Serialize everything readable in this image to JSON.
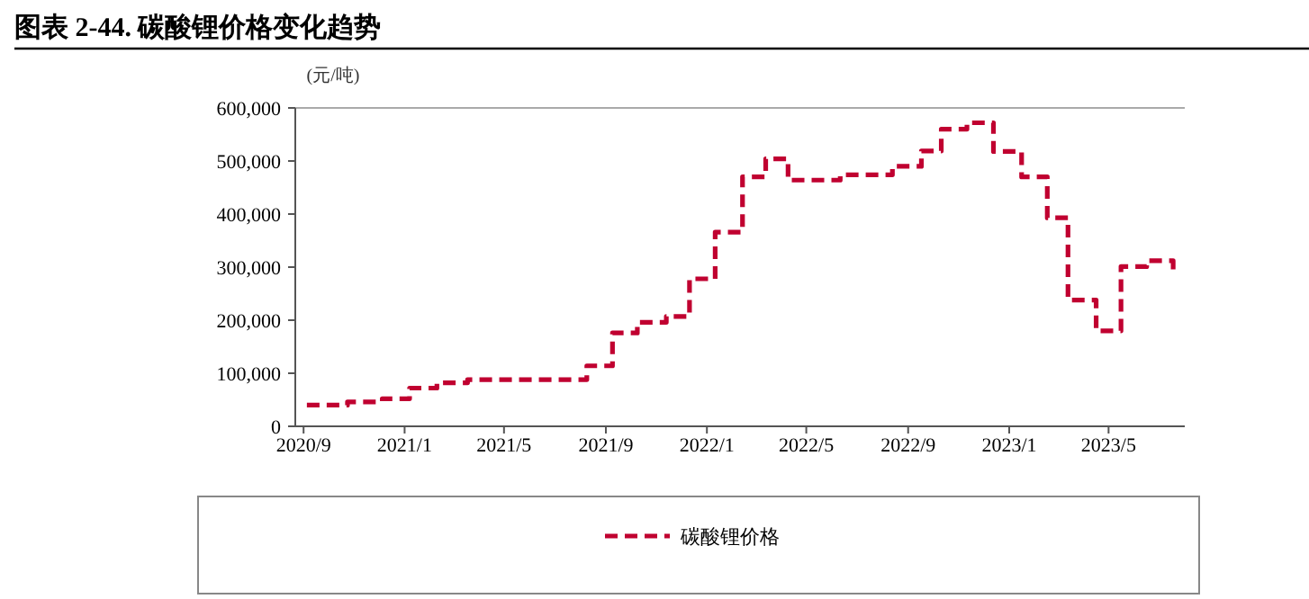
{
  "chart_data": {
    "type": "step",
    "title": "图表 2-44. 碳酸锂价格变化趋势",
    "ylabel": "(元/吨)",
    "x": [
      "2020-09-05",
      "2020-10-24",
      "2020-12-05",
      "2021-01-07",
      "2021-02-09",
      "2021-03-18",
      "2021-08-09",
      "2021-09-09",
      "2021-10-09",
      "2021-11-13",
      "2021-12-11",
      "2022-01-11",
      "2022-02-13",
      "2022-03-13",
      "2022-04-09",
      "2022-06-11",
      "2022-08-13",
      "2022-09-17",
      "2022-10-11",
      "2022-11-11",
      "2022-12-13",
      "2023-01-16",
      "2023-02-16",
      "2023-03-13",
      "2023-04-16",
      "2023-05-16",
      "2023-06-16",
      "2023-07-18"
    ],
    "series": [
      {
        "name": "碳酸锂价格",
        "color": "#c00030",
        "values": [
          40000,
          46000,
          52000,
          72000,
          82000,
          88000,
          114000,
          176000,
          196000,
          207000,
          278000,
          366000,
          470000,
          504000,
          464000,
          474000,
          490000,
          519000,
          560000,
          572000,
          518000,
          470000,
          393000,
          238000,
          180000,
          301000,
          312000,
          293000
        ]
      }
    ],
    "xlim": [
      "2020-08-22",
      "2023-08-01"
    ],
    "xticks": [
      {
        "value": "2020-09-01",
        "label": "2020/9"
      },
      {
        "value": "2021-01-01",
        "label": "2021/1"
      },
      {
        "value": "2021-05-01",
        "label": "2021/5"
      },
      {
        "value": "2021-09-01",
        "label": "2021/9"
      },
      {
        "value": "2022-01-01",
        "label": "2022/1"
      },
      {
        "value": "2022-05-01",
        "label": "2022/5"
      },
      {
        "value": "2022-09-01",
        "label": "2022/9"
      },
      {
        "value": "2023-01-01",
        "label": "2023/1"
      },
      {
        "value": "2023-05-01",
        "label": "2023/5"
      }
    ],
    "ylim": [
      0,
      600000
    ],
    "yticks": [
      {
        "value": 0,
        "label": "0"
      },
      {
        "value": 100000,
        "label": "100,000"
      },
      {
        "value": 200000,
        "label": "200,000"
      },
      {
        "value": 300000,
        "label": "300,000"
      },
      {
        "value": 400000,
        "label": "400,000"
      },
      {
        "value": 500000,
        "label": "500,000"
      },
      {
        "value": 600000,
        "label": "600,000"
      }
    ],
    "grid": false,
    "legend": "bottom",
    "line_style": "dashed"
  }
}
